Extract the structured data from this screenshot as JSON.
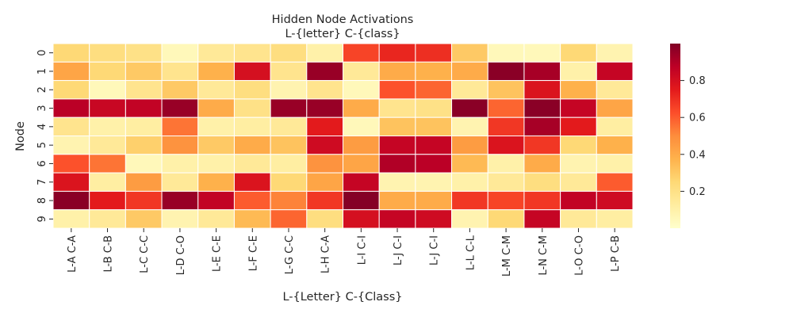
{
  "chart_data": {
    "type": "heatmap",
    "title": "Hidden Node Activations",
    "subtitle": "L-{letter} C-{class}",
    "xlabel": "L-{Letter} C-{Class}",
    "ylabel": "Node",
    "x_categories": [
      "L-A C-A",
      "L-B C-B",
      "L-C C-C",
      "L-D C-O",
      "L-E C-E",
      "L-F C-E",
      "L-G C-C",
      "L-H C-A",
      "L-I C-I",
      "L-J C-I",
      "L-J C-I",
      "L-L C-L",
      "L-M C-M",
      "L-N C-M",
      "L-O C-O",
      "L-P C-B"
    ],
    "y_categories": [
      "0",
      "1",
      "2",
      "3",
      "4",
      "5",
      "6",
      "7",
      "8",
      "9"
    ],
    "values": [
      [
        0.25,
        0.22,
        0.2,
        0.05,
        0.15,
        0.18,
        0.22,
        0.1,
        0.65,
        0.72,
        0.7,
        0.3,
        0.05,
        0.05,
        0.25,
        0.08
      ],
      [
        0.42,
        0.25,
        0.3,
        0.18,
        0.38,
        0.8,
        0.18,
        0.95,
        0.15,
        0.4,
        0.38,
        0.4,
        0.98,
        0.92,
        0.1,
        0.85
      ],
      [
        0.25,
        0.05,
        0.18,
        0.3,
        0.15,
        0.22,
        0.08,
        0.18,
        0.05,
        0.62,
        0.58,
        0.15,
        0.32,
        0.78,
        0.38,
        0.15
      ],
      [
        0.88,
        0.84,
        0.86,
        0.95,
        0.4,
        0.2,
        0.95,
        0.95,
        0.4,
        0.18,
        0.2,
        0.98,
        0.58,
        0.98,
        0.85,
        0.42
      ],
      [
        0.18,
        0.1,
        0.12,
        0.55,
        0.1,
        0.12,
        0.15,
        0.75,
        0.05,
        0.32,
        0.32,
        0.08,
        0.68,
        0.92,
        0.75,
        0.12
      ],
      [
        0.08,
        0.15,
        0.28,
        0.48,
        0.3,
        0.4,
        0.32,
        0.82,
        0.45,
        0.85,
        0.85,
        0.45,
        0.78,
        0.68,
        0.25,
        0.38
      ],
      [
        0.62,
        0.55,
        0.05,
        0.1,
        0.1,
        0.15,
        0.12,
        0.48,
        0.42,
        0.9,
        0.88,
        0.35,
        0.1,
        0.4,
        0.08,
        0.1
      ],
      [
        0.78,
        0.12,
        0.45,
        0.15,
        0.38,
        0.78,
        0.25,
        0.42,
        0.85,
        0.08,
        0.08,
        0.1,
        0.15,
        0.22,
        0.15,
        0.6
      ],
      [
        0.98,
        0.75,
        0.68,
        0.95,
        0.86,
        0.6,
        0.52,
        0.68,
        0.99,
        0.4,
        0.4,
        0.68,
        0.65,
        0.68,
        0.86,
        0.82
      ],
      [
        0.1,
        0.15,
        0.3,
        0.08,
        0.15,
        0.35,
        0.58,
        0.22,
        0.8,
        0.85,
        0.82,
        0.08,
        0.25,
        0.85,
        0.15,
        0.12
      ]
    ],
    "vmin": 0,
    "vmax": 1,
    "colorbar_ticks": [
      "0.2",
      "0.4",
      "0.6",
      "0.8"
    ],
    "colorbar_tick_values": [
      0.2,
      0.4,
      0.6,
      0.8
    ],
    "colormap": "YlOrRd",
    "colormap_stops": [
      "#ffffcc",
      "#ffeda0",
      "#fed976",
      "#feb24c",
      "#fd8d3c",
      "#fc4e2a",
      "#e31a1c",
      "#bd0026",
      "#800026"
    ],
    "cell_border_color": "#ffffff"
  }
}
